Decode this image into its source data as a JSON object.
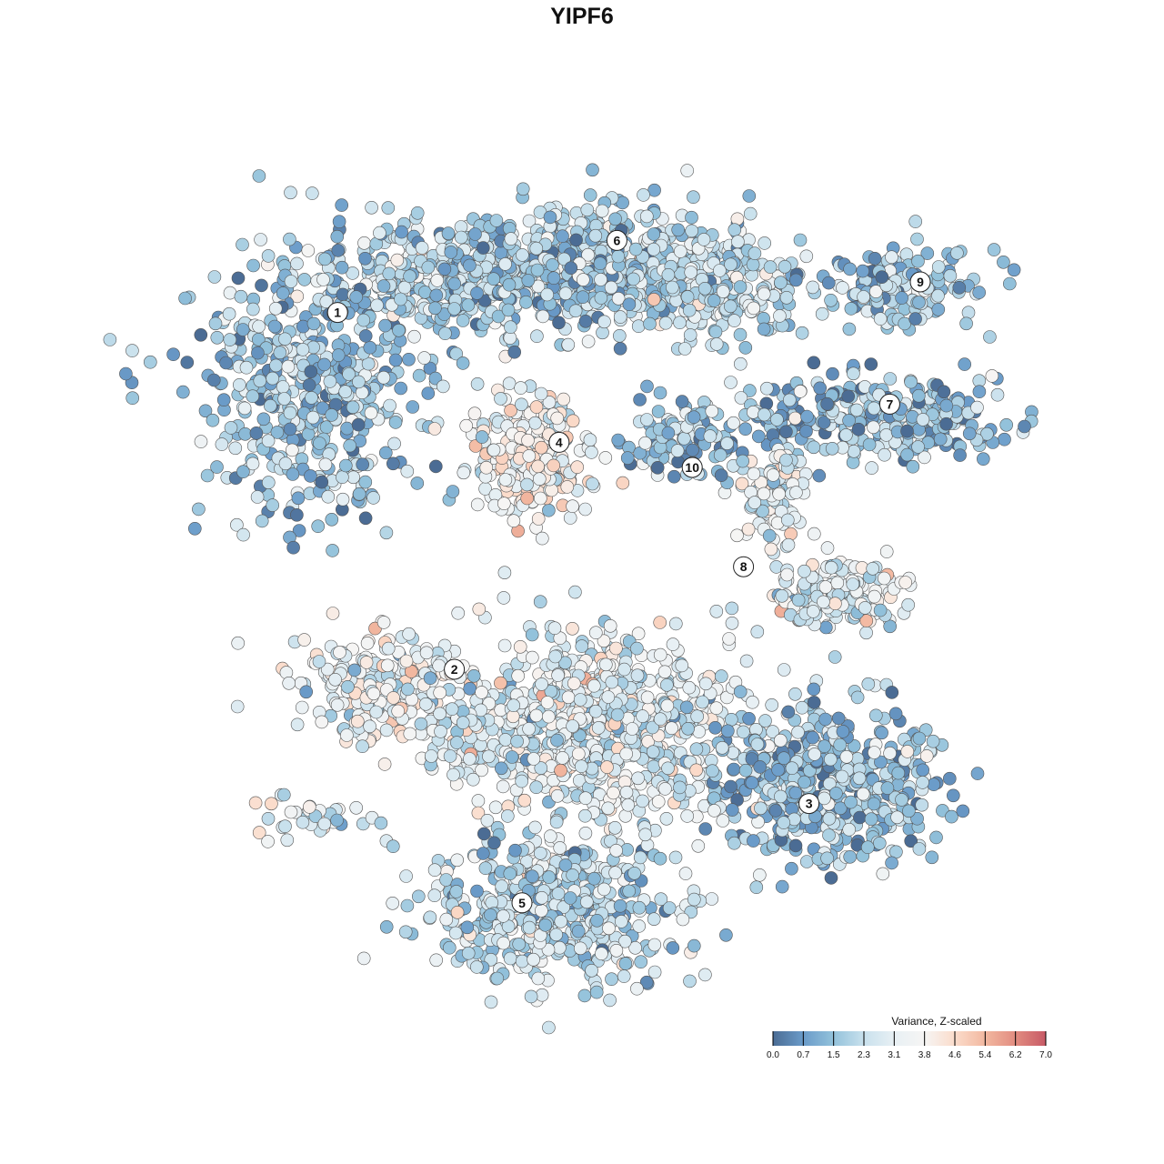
{
  "chart_data": {
    "type": "scatter",
    "title": "YIPF6",
    "xlabel": "",
    "ylabel": "",
    "axes_visible": false,
    "grid": false,
    "point_stroke": "#555555",
    "legend": {
      "title": "Variance, Z-scaled",
      "placement": "bottom-right",
      "ticks": [
        "0.0",
        "0.7",
        "1.5",
        "2.3",
        "3.1",
        "3.8",
        "4.6",
        "5.4",
        "6.2",
        "7.0"
      ],
      "range": [
        0,
        7
      ],
      "colors": [
        "#4b6c94",
        "#6a9bc9",
        "#93c2db",
        "#c9e1ed",
        "#e8f0f4",
        "#f6f5f4",
        "#fbdccb",
        "#f2b8a0",
        "#e28c80",
        "#c75a66"
      ]
    },
    "cluster_labels": [
      {
        "label": "1",
        "x": -22.4,
        "y": 24.7
      },
      {
        "label": "6",
        "x": 3.2,
        "y": 31.3
      },
      {
        "label": "9",
        "x": 31.0,
        "y": 27.5
      },
      {
        "label": "7",
        "x": 28.2,
        "y": 16.3
      },
      {
        "label": "4",
        "x": -2.1,
        "y": 12.8
      },
      {
        "label": "10",
        "x": 10.1,
        "y": 10.5
      },
      {
        "label": "8",
        "x": 14.8,
        "y": 1.4
      },
      {
        "label": "2",
        "x": -11.7,
        "y": -8.0
      },
      {
        "label": "3",
        "x": 20.8,
        "y": -20.3
      },
      {
        "label": "5",
        "x": -5.5,
        "y": -29.4
      }
    ],
    "clusters": [
      {
        "cluster": "1",
        "cx": -25,
        "cy": 18,
        "sx": 7,
        "sy": 8,
        "n": 500,
        "mean_value": 1.7
      },
      {
        "cluster": "1",
        "cx": -12,
        "cy": 28,
        "sx": 8,
        "sy": 3.5,
        "n": 400,
        "mean_value": 2.0
      },
      {
        "cluster": "6",
        "cx": 2,
        "cy": 29,
        "sx": 8,
        "sy": 3.5,
        "n": 500,
        "mean_value": 1.9
      },
      {
        "cluster": "6",
        "cx": 12,
        "cy": 27,
        "sx": 5,
        "sy": 3,
        "n": 220,
        "mean_value": 2.4
      },
      {
        "cluster": "9",
        "cx": 29,
        "cy": 27,
        "sx": 5,
        "sy": 2.5,
        "n": 150,
        "mean_value": 1.8
      },
      {
        "cluster": "7",
        "cx": 27,
        "cy": 15,
        "sx": 8,
        "sy": 2.5,
        "n": 300,
        "mean_value": 1.5
      },
      {
        "cluster": "4",
        "cx": -5,
        "cy": 11.5,
        "sx": 3.8,
        "sy": 3.8,
        "n": 250,
        "mean_value": 3.6
      },
      {
        "cluster": "10",
        "cx": 9.5,
        "cy": 13,
        "sx": 4,
        "sy": 2.5,
        "n": 120,
        "mean_value": 1.5
      },
      {
        "cluster": "8",
        "cx": 17.5,
        "cy": 8,
        "sx": 2,
        "sy": 3,
        "n": 100,
        "mean_value": 3.2
      },
      {
        "cluster": "8",
        "cx": 23,
        "cy": -1,
        "sx": 4,
        "sy": 2,
        "n": 180,
        "mean_value": 2.8
      },
      {
        "cluster": "2",
        "cx": -18,
        "cy": -10,
        "sx": 6,
        "sy": 3.5,
        "n": 250,
        "mean_value": 3.2
      },
      {
        "cluster": "2",
        "cx": -25,
        "cy": -22,
        "sx": 4,
        "sy": 1.5,
        "n": 40,
        "mean_value": 3.0
      },
      {
        "cluster": "",
        "cx": 1,
        "cy": -13,
        "sx": 9,
        "sy": 5.5,
        "n": 800,
        "mean_value": 3.0
      },
      {
        "cluster": "3",
        "cx": 22,
        "cy": -18,
        "sx": 7,
        "sy": 5,
        "n": 500,
        "mean_value": 1.6
      },
      {
        "cluster": "5",
        "cx": -2.5,
        "cy": -30,
        "sx": 7.5,
        "sy": 4.5,
        "n": 500,
        "mean_value": 2.2
      }
    ]
  }
}
